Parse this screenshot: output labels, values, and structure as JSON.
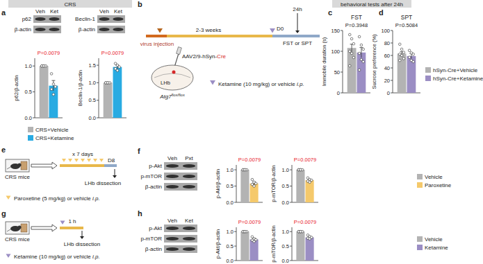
{
  "chart_data": [
    {
      "type": "bar",
      "y_label": "p62/β-actin",
      "annotations": [
        {
          "text": "P=0.0079",
          "color": "#e8202a"
        }
      ],
      "categories": [
        null
      ],
      "ylim": [
        0,
        1.15
      ],
      "yticks": [
        {
          "value": 0,
          "label": "0.0"
        },
        {
          "value": 0.5,
          "label": "0.5"
        },
        {
          "value": 1,
          "label": "1.0"
        }
      ],
      "series": [
        {
          "name": "CRS+Vehicle",
          "color": "#b3b3b3",
          "values": [
            1.0
          ],
          "errors": [
            0
          ],
          "points": [
            1,
            1,
            1,
            1,
            1
          ]
        },
        {
          "name": "CRS+Ketamine",
          "color": "#29abe2",
          "values": [
            0.62
          ],
          "errors": [
            0.1
          ],
          "points": [
            0.85,
            0.65,
            0.6,
            0.55,
            0.45
          ]
        }
      ]
    },
    {
      "type": "bar",
      "y_label": "Beclin-1/β-actin",
      "annotations": [
        {
          "text": "P=0.0079",
          "color": "#e8202a"
        }
      ],
      "categories": [
        null
      ],
      "ylim": [
        0,
        1.7
      ],
      "yticks": [
        {
          "value": 0,
          "label": "0.0"
        },
        {
          "value": 0.5,
          "label": "0.5"
        },
        {
          "value": 1,
          "label": "1.0"
        },
        {
          "value": 1.5,
          "label": "1.5"
        }
      ],
      "series": [
        {
          "color": "#b3b3b3",
          "values": [
            1.0
          ],
          "errors": [
            0
          ],
          "points": [
            1,
            1,
            1,
            1,
            1
          ]
        },
        {
          "color": "#29abe2",
          "values": [
            1.45
          ],
          "errors": [
            0.05
          ],
          "points": [
            1.55,
            1.5,
            1.45,
            1.4,
            1.35
          ]
        }
      ]
    },
    {
      "type": "bar",
      "title": "FST",
      "y_label": "Immobile duration (s)",
      "annotations": [
        {
          "text": "P=0.3948",
          "color": "#222222"
        }
      ],
      "categories": [
        null
      ],
      "ylim": [
        0,
        150
      ],
      "yticks": [
        0,
        50,
        100,
        150
      ],
      "series": [
        {
          "name": "hSyn-Cre+Vehicle",
          "color": "#b3b3b3",
          "values": [
            108
          ],
          "errors": [
            9
          ],
          "points": [
            140,
            130,
            118,
            100,
            95,
            85,
            65
          ]
        },
        {
          "name": "hSyn-Cre+Ketamine",
          "color": "#9b8ec4",
          "values": [
            97
          ],
          "errors": [
            12
          ],
          "points": [
            135,
            115,
            105,
            95,
            80,
            75,
            55
          ]
        }
      ]
    },
    {
      "type": "bar",
      "title": "SPT",
      "y_label": "Sucrose preference (%)",
      "annotations": [
        {
          "text": "P=0.5084",
          "color": "#222222"
        }
      ],
      "categories": [
        null
      ],
      "ylim": [
        0,
        100
      ],
      "yticks": [
        0,
        20,
        40,
        60,
        80,
        100
      ],
      "series": [
        {
          "color": "#b3b3b3",
          "values": [
            63
          ],
          "errors": [
            3
          ],
          "points": [
            78,
            70,
            65,
            62,
            60,
            55,
            52
          ]
        },
        {
          "color": "#9b8ec4",
          "values": [
            59
          ],
          "errors": [
            4
          ],
          "points": [
            68,
            64,
            62,
            57,
            52,
            50
          ]
        }
      ]
    },
    {
      "type": "bar",
      "y_label": "p-Akt/β-actin",
      "annotations": [
        {
          "text": "P=0.0079",
          "color": "#e8202a"
        }
      ],
      "categories": [
        null
      ],
      "ylim": [
        0,
        1.15
      ],
      "yticks": [
        {
          "value": 0,
          "label": "0.0"
        },
        {
          "value": 0.5,
          "label": "0.5"
        },
        {
          "value": 1,
          "label": "1.0"
        }
      ],
      "series": [
        {
          "name": "Vehicle",
          "color": "#b3b3b3",
          "values": [
            1.0
          ],
          "errors": [
            0
          ],
          "points": [
            1,
            1,
            1,
            1,
            1
          ]
        },
        {
          "name": "Paroxetine",
          "color": "#f5c96b",
          "values": [
            0.58
          ],
          "errors": [
            0.05
          ],
          "points": [
            0.7,
            0.62,
            0.58,
            0.55,
            0.5
          ]
        }
      ]
    },
    {
      "type": "bar",
      "y_label": "p-mTOR/β-actin",
      "annotations": [
        {
          "text": "P=0.0079",
          "color": "#e8202a"
        }
      ],
      "categories": [
        null
      ],
      "ylim": [
        0,
        1.15
      ],
      "yticks": [
        {
          "value": 0,
          "label": "0.0"
        },
        {
          "value": 0.5,
          "label": "0.5"
        },
        {
          "value": 1,
          "label": "1.0"
        }
      ],
      "series": [
        {
          "color": "#b3b3b3",
          "values": [
            1.0
          ],
          "errors": [
            0
          ],
          "points": [
            1,
            1,
            1,
            1,
            1
          ]
        },
        {
          "color": "#f5c96b",
          "values": [
            0.68
          ],
          "errors": [
            0.03
          ],
          "points": [
            0.75,
            0.7,
            0.68,
            0.65,
            0.62
          ]
        }
      ]
    },
    {
      "type": "bar",
      "y_label": "p-Akt/β-actin",
      "annotations": [
        {
          "text": "P=0.0079",
          "color": "#e8202a"
        }
      ],
      "categories": [
        null
      ],
      "ylim": [
        0,
        1.15
      ],
      "yticks": [
        {
          "value": 0,
          "label": "0.0"
        },
        {
          "value": 0.5,
          "label": "0.5"
        },
        {
          "value": 1,
          "label": "1.0"
        }
      ],
      "series": [
        {
          "name": "Vehicle",
          "color": "#b3b3b3",
          "values": [
            1.0
          ],
          "errors": [
            0
          ],
          "points": [
            1,
            1,
            1,
            1,
            1
          ]
        },
        {
          "name": "Ketamine",
          "color": "#9b8ec4",
          "values": [
            0.73
          ],
          "errors": [
            0.04
          ],
          "points": [
            0.82,
            0.75,
            0.72,
            0.7,
            0.66
          ]
        }
      ]
    },
    {
      "type": "bar",
      "y_label": "p-mTOR/β-actin",
      "annotations": [
        {
          "text": "P=0.0079",
          "color": "#e8202a"
        }
      ],
      "categories": [
        null
      ],
      "ylim": [
        0,
        1.15
      ],
      "yticks": [
        {
          "value": 0,
          "label": "0.0"
        },
        {
          "value": 0.5,
          "label": "0.5"
        },
        {
          "value": 1,
          "label": "1.0"
        }
      ],
      "series": [
        {
          "color": "#b3b3b3",
          "values": [
            1.0
          ],
          "errors": [
            0
          ],
          "points": [
            1,
            1,
            1,
            1,
            1
          ]
        },
        {
          "color": "#9b8ec4",
          "values": [
            0.8
          ],
          "errors": [
            0.03
          ],
          "points": [
            0.88,
            0.83,
            0.8,
            0.77,
            0.75
          ]
        }
      ]
    }
  ],
  "panels": [
    "a",
    "b",
    "c",
    "d",
    "e",
    "f",
    "g",
    "h"
  ],
  "headers": [
    "CRS",
    "behavioral tests after 24h"
  ],
  "blots": [
    {
      "lanes": [
        "Veh",
        "Ket"
      ],
      "rows": [
        "p62",
        "β-actin"
      ]
    },
    {
      "lanes": [
        "Veh",
        "Ket"
      ],
      "rows": [
        "Beclin-1",
        "β-actin"
      ]
    },
    {
      "lanes": [
        "Veh",
        "Pxt"
      ],
      "rows": [
        "p-Akt",
        "p-mTOR",
        "β-actin"
      ]
    },
    {
      "lanes": [
        "Veh",
        "Ket"
      ],
      "rows": [
        "p-Akt",
        "p-mTOR",
        "β-actin"
      ]
    }
  ],
  "diagrams": {
    "b": {
      "virus": "virus injection",
      "duration": "2-3 weeks",
      "day": "D0",
      "wait": "24h",
      "tests": "FST or SPT",
      "vector_prefix": "AAV2/9-hSyn-",
      "vector_cre": "Cre",
      "region": "LHb",
      "gene": "Atg7",
      "allele": "flox/flox",
      "treatment": "Ketamine (10 mg/kg) or vehicle",
      "route": "i.p."
    },
    "e": {
      "subject": "CRS mice",
      "repeat": "x 7 days",
      "day": "D8",
      "outcome": "LHb dissection",
      "treatment": "Paroxetine (5 mg/kg) or vehicle",
      "route": "i.p."
    },
    "g": {
      "subject": "CRS mice",
      "wait": "1 h",
      "outcome": "LHb dissection",
      "treatment": "Ketamine (10 mg/kg) or vehicle",
      "route": "i.p."
    }
  }
}
